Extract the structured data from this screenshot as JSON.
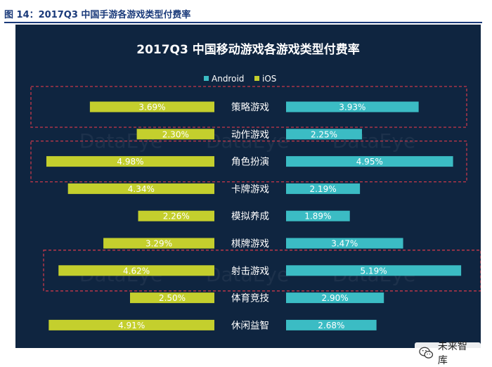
{
  "figure_caption": "图 14：2017Q3 中国手游各游戏类型付费率",
  "brand": {
    "name": "未来智库",
    "icon": "wechat-icon"
  },
  "colors": {
    "panel_bg": "#0f2540",
    "android": "#3bbcc4",
    "ios": "#c4cf2d",
    "highlight_border": "#c8384a",
    "label_text": "#ffffff"
  },
  "chart_data": {
    "type": "bar",
    "layout": "butterfly",
    "title": "2017Q3 中国移动游戏各游戏类型付费率",
    "legend_position": "top-center",
    "categories": [
      "策略游戏",
      "动作游戏",
      "角色扮演",
      "卡牌游戏",
      "模拟养成",
      "棋牌游戏",
      "射击游戏",
      "体育竞技",
      "休闲益智"
    ],
    "series": [
      {
        "name": "Android",
        "side": "right",
        "values": [
          3.93,
          2.25,
          4.95,
          2.19,
          1.89,
          3.47,
          5.19,
          2.9,
          2.68
        ],
        "labels": [
          "3.93%",
          "2.25%",
          "4.95%",
          "2.19%",
          "1.89%",
          "3.47%",
          "5.19%",
          "2.90%",
          "2.68%"
        ]
      },
      {
        "name": "iOS",
        "side": "left",
        "values": [
          3.69,
          2.3,
          4.98,
          4.34,
          2.26,
          3.29,
          4.62,
          2.5,
          4.91
        ],
        "labels": [
          "3.69%",
          "2.30%",
          "4.98%",
          "4.34%",
          "2.26%",
          "3.29%",
          "4.62%",
          "2.50%",
          "4.91%"
        ]
      }
    ],
    "highlighted_categories": [
      "策略游戏",
      "角色扮演",
      "射击游戏"
    ],
    "watermark": "DataEye",
    "grid": false
  }
}
